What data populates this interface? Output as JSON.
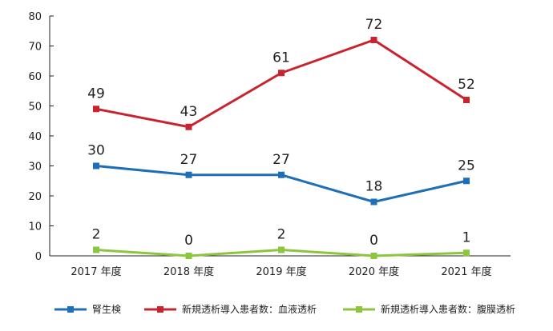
{
  "chart_data": {
    "type": "line",
    "categories": [
      "2017 年度",
      "2018 年度",
      "2019 年度",
      "2020 年度",
      "2021 年度"
    ],
    "ylim": [
      0,
      80
    ],
    "yticks": [
      0,
      10,
      20,
      30,
      40,
      50,
      60,
      70,
      80
    ],
    "grid": false,
    "legend_position": "bottom",
    "series": [
      {
        "name": "腎生検",
        "color": "#1f6fb8",
        "values": [
          30,
          27,
          27,
          18,
          25
        ]
      },
      {
        "name": "新規透析導入患者数：血液透析",
        "color": "#c8242f",
        "values": [
          49,
          43,
          61,
          72,
          52
        ]
      },
      {
        "name": "新規透析導入患者数：腹膜透析",
        "color": "#8cc63f",
        "values": [
          2,
          0,
          2,
          0,
          1
        ]
      }
    ]
  }
}
